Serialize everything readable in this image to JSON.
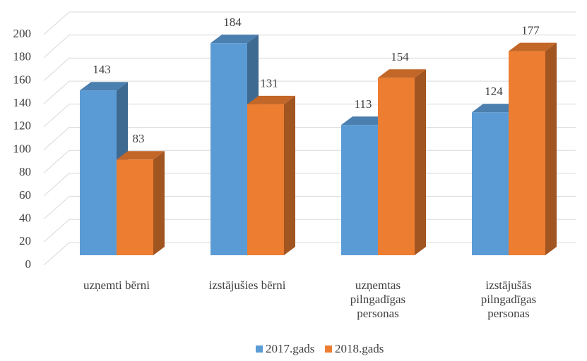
{
  "chart_data": {
    "type": "bar3d",
    "categories": [
      "uzņemti bērni",
      "izstājušies bērni",
      "uzņemtas\npilngadīgas\npersonas",
      "izstājušās\npilngadīgas\npersonas"
    ],
    "series": [
      {
        "name": "2017.gads",
        "color": "#5b9bd5",
        "values": [
          143,
          184,
          113,
          124
        ]
      },
      {
        "name": "2018.gads",
        "color": "#ed7d31",
        "values": [
          83,
          131,
          154,
          177
        ]
      }
    ],
    "ylim": [
      0,
      200
    ],
    "yticks": [
      0,
      20,
      40,
      60,
      80,
      100,
      120,
      140,
      160,
      180,
      200
    ],
    "grid": true,
    "legend": "bottom"
  }
}
